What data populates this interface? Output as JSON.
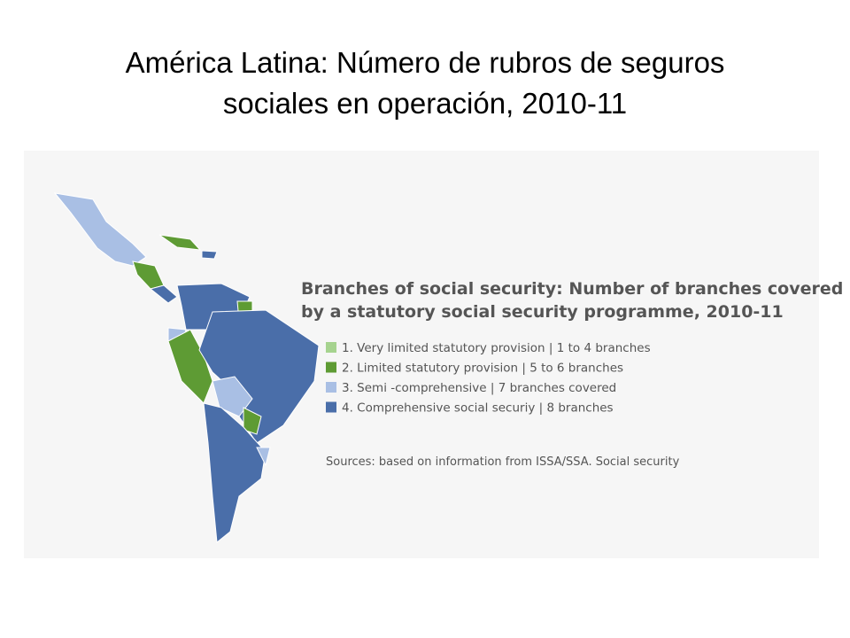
{
  "title": {
    "line1": "América Latina: Número de rubros de seguros",
    "line2": "sociales en operación, 2010-11"
  },
  "map": {
    "legend_title": {
      "line1": "Branches of social security: Number of branches covered",
      "line2": "by a statutory social security programme, 2010-11"
    },
    "legend": [
      {
        "label": "1. Very limited statutory provision | 1 to 4 branches",
        "color": "#a6d38f"
      },
      {
        "label": "2. Limited statutory provision | 5 to 6 branches",
        "color": "#5e9b34"
      },
      {
        "label": "3. Semi -comprehensive | 7 branches covered",
        "color": "#a9bfe4"
      },
      {
        "label": "4. Comprehensive social securiy | 8 branches",
        "color": "#4a6ea9"
      }
    ],
    "sources": "Sources: based on information from ISSA/SSA. Social security"
  }
}
